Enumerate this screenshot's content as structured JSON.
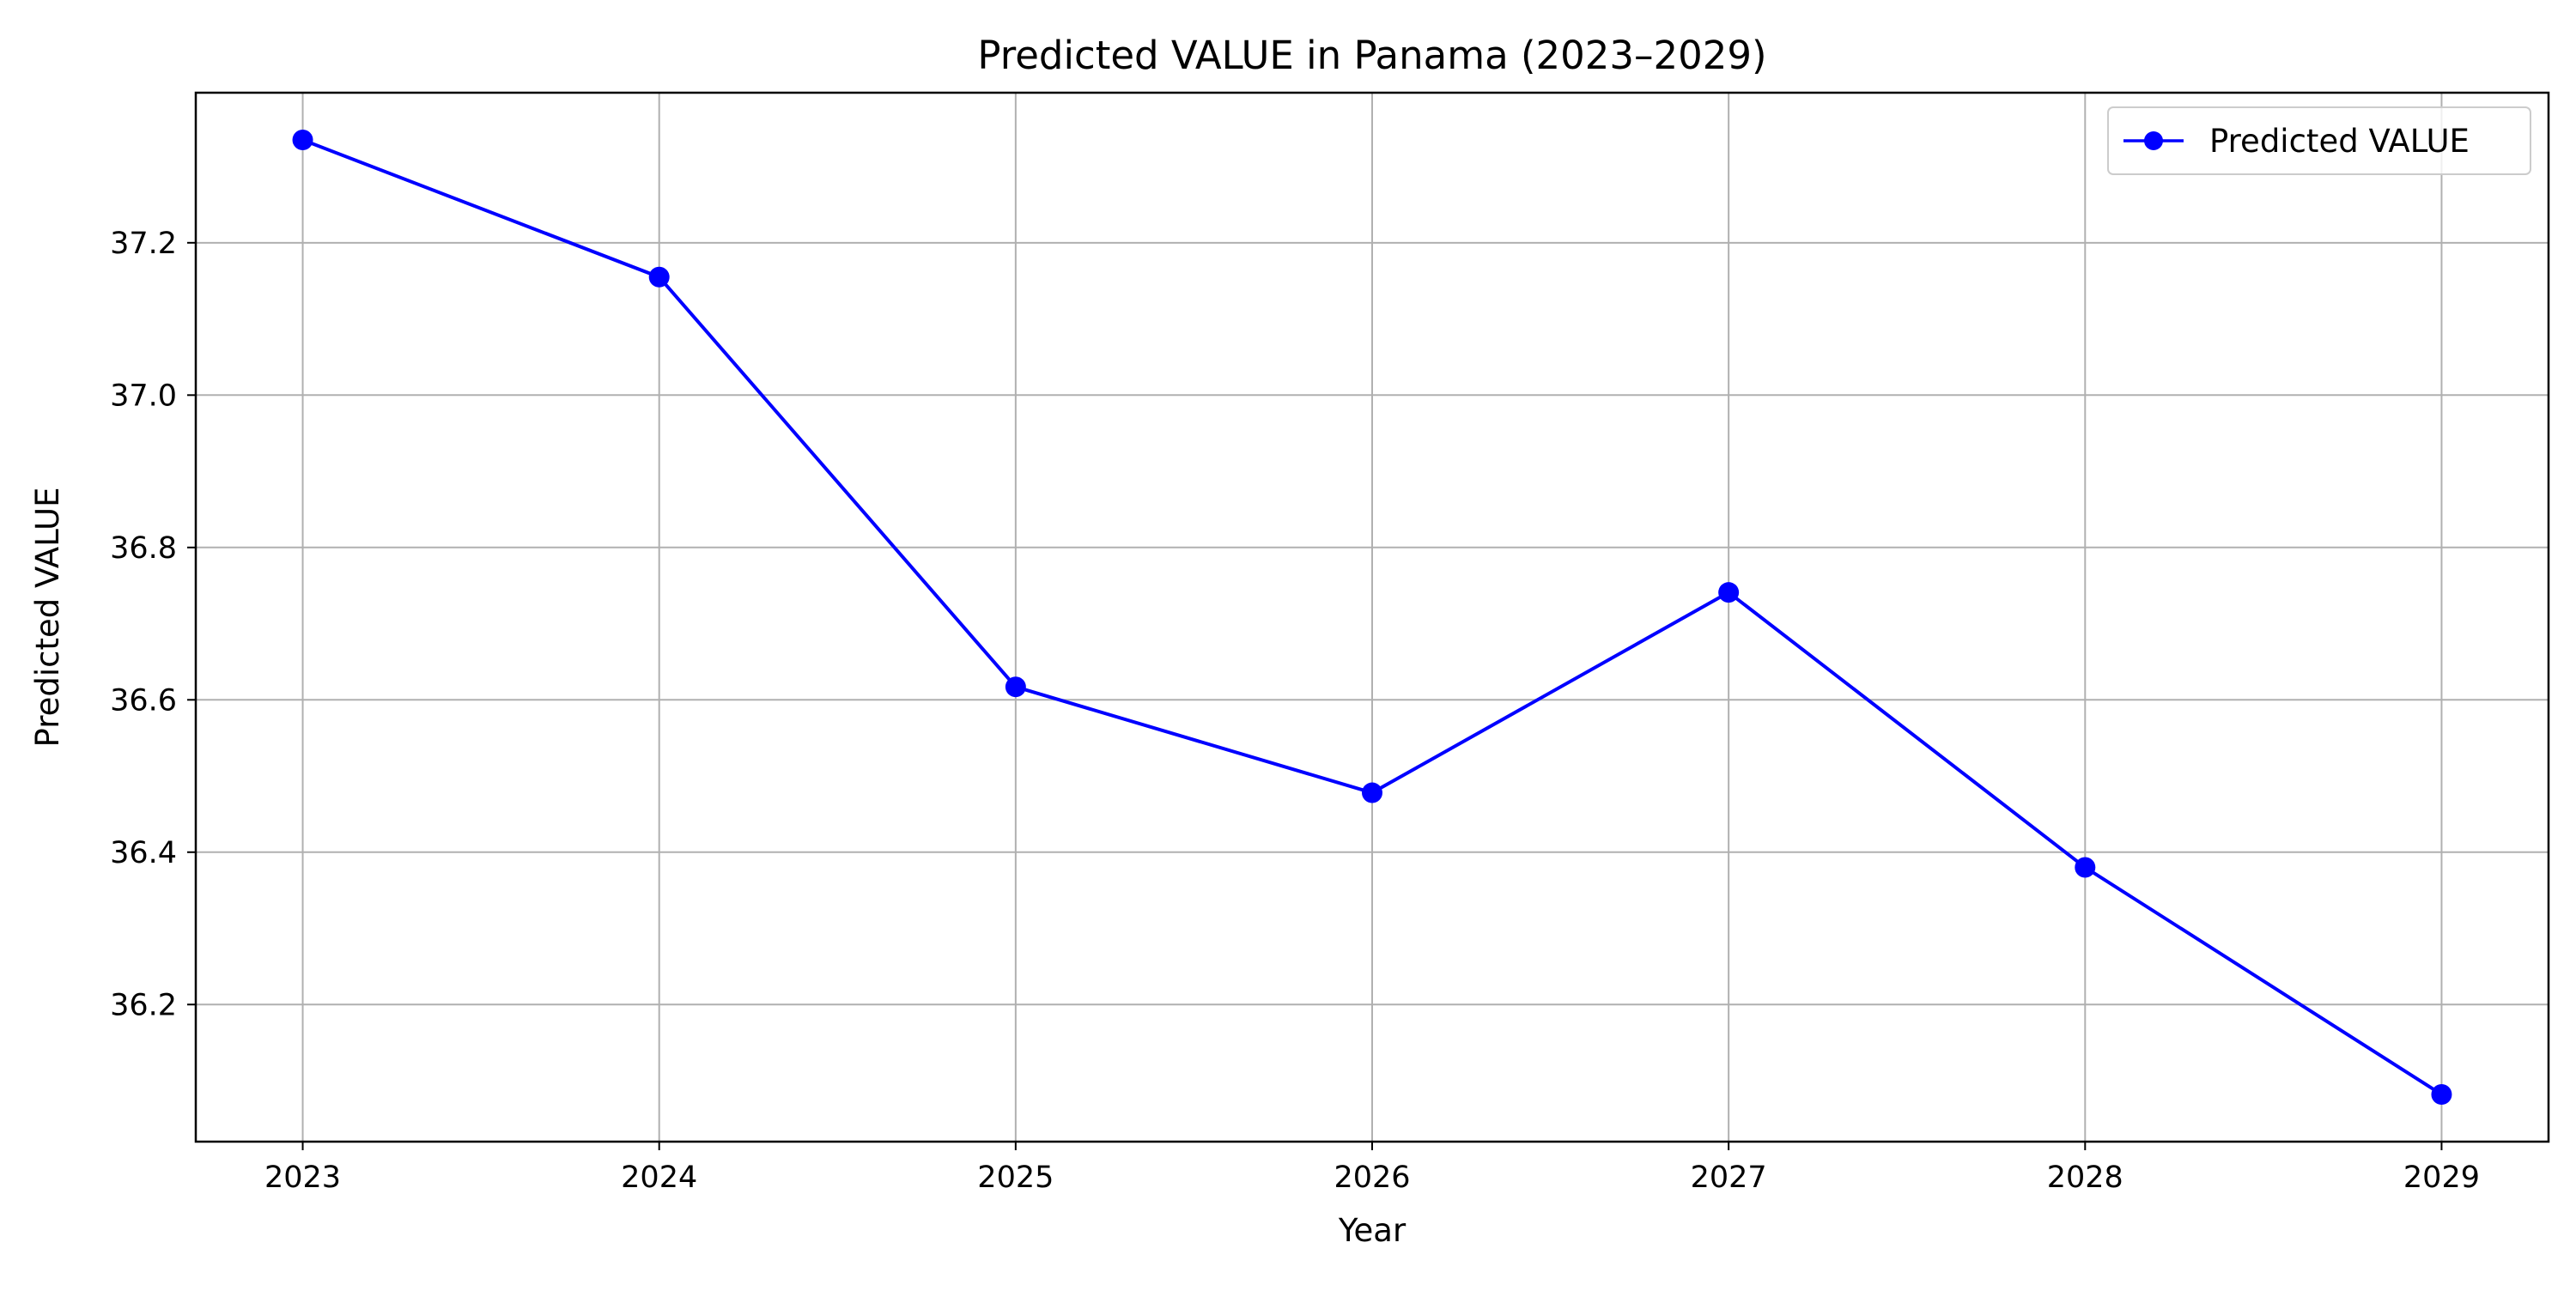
{
  "chart_data": {
    "type": "line",
    "title": "Predicted VALUE in Panama (2023–2029)",
    "xlabel": "Year",
    "ylabel": "Predicted VALUE",
    "x": [
      2023,
      2024,
      2025,
      2026,
      2027,
      2028,
      2029
    ],
    "x_tick_labels": [
      "2023",
      "2024",
      "2025",
      "2026",
      "2027",
      "2028",
      "2029"
    ],
    "series": [
      {
        "name": "Predicted VALUE",
        "color": "#0000ff",
        "marker": "circle",
        "values": [
          37.335,
          37.155,
          36.617,
          36.478,
          36.741,
          36.38,
          36.082
        ]
      }
    ],
    "y_ticks": [
      36.2,
      36.4,
      36.6,
      36.8,
      37.0,
      37.2
    ],
    "y_tick_labels": [
      "36.2",
      "36.4",
      "36.6",
      "36.8",
      "37.0",
      "37.2"
    ],
    "xlim": [
      2022.7,
      2029.3
    ],
    "ylim": [
      36.02,
      37.397
    ],
    "grid": true,
    "grid_color": "#b0b0b0",
    "legend_position": "upper right"
  }
}
